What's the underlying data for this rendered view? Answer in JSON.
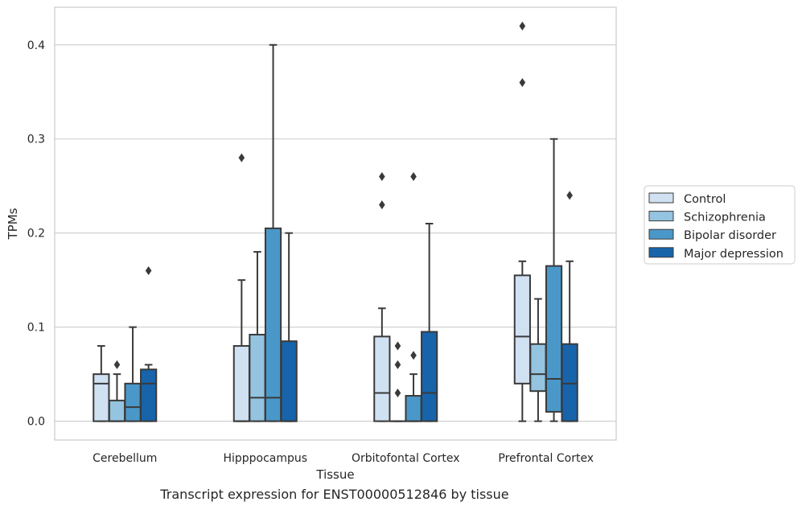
{
  "caption": "Transcript expression for ENST00000512846 by tissue",
  "chart_data": {
    "type": "box",
    "xlabel": "Tissue",
    "ylabel": "TPMs",
    "ylim": [
      -0.02,
      0.44
    ],
    "yticks": [
      0.0,
      0.1,
      0.2,
      0.3,
      0.4
    ],
    "ytick_labels": [
      "0.0",
      "0.1",
      "0.2",
      "0.3",
      "0.4"
    ],
    "grid": "horizontal",
    "legend_position": "right",
    "categories": [
      "Cerebellum",
      "Hipppocampus",
      "Orbitofontal Cortex",
      "Prefrontal Cortex"
    ],
    "series": [
      {
        "name": "Control",
        "color": "#d0e1f2",
        "boxes": [
          {
            "whisker_low": 0.0,
            "q1": 0.0,
            "median": 0.04,
            "q3": 0.05,
            "whisker_high": 0.08,
            "outliers": []
          },
          {
            "whisker_low": 0.0,
            "q1": 0.0,
            "median": 0.0,
            "q3": 0.08,
            "whisker_high": 0.15,
            "outliers": [
              0.28
            ]
          },
          {
            "whisker_low": 0.0,
            "q1": 0.0,
            "median": 0.03,
            "q3": 0.09,
            "whisker_high": 0.12,
            "outliers": [
              0.23,
              0.26
            ]
          },
          {
            "whisker_low": 0.0,
            "q1": 0.04,
            "median": 0.09,
            "q3": 0.155,
            "whisker_high": 0.17,
            "outliers": [
              0.36,
              0.42
            ]
          }
        ]
      },
      {
        "name": "Schizophrenia",
        "color": "#94c4df",
        "boxes": [
          {
            "whisker_low": 0.0,
            "q1": 0.0,
            "median": 0.0,
            "q3": 0.022,
            "whisker_high": 0.05,
            "outliers": [
              0.06
            ]
          },
          {
            "whisker_low": 0.0,
            "q1": 0.0,
            "median": 0.025,
            "q3": 0.092,
            "whisker_high": 0.18,
            "outliers": []
          },
          {
            "whisker_low": 0.0,
            "q1": 0.0,
            "median": 0.0,
            "q3": 0.0,
            "whisker_high": 0.0,
            "outliers": [
              0.03,
              0.06,
              0.08
            ]
          },
          {
            "whisker_low": 0.0,
            "q1": 0.032,
            "median": 0.05,
            "q3": 0.082,
            "whisker_high": 0.13,
            "outliers": []
          }
        ]
      },
      {
        "name": "Bipolar disorder",
        "color": "#4a98c9",
        "boxes": [
          {
            "whisker_low": 0.0,
            "q1": 0.0,
            "median": 0.015,
            "q3": 0.04,
            "whisker_high": 0.1,
            "outliers": []
          },
          {
            "whisker_low": 0.0,
            "q1": 0.0,
            "median": 0.025,
            "q3": 0.205,
            "whisker_high": 0.4,
            "outliers": []
          },
          {
            "whisker_low": 0.0,
            "q1": 0.0,
            "median": 0.0,
            "q3": 0.027,
            "whisker_high": 0.05,
            "outliers": [
              0.07,
              0.26
            ]
          },
          {
            "whisker_low": 0.0,
            "q1": 0.01,
            "median": 0.045,
            "q3": 0.165,
            "whisker_high": 0.3,
            "outliers": []
          }
        ]
      },
      {
        "name": "Major depression",
        "color": "#1764ab",
        "boxes": [
          {
            "whisker_low": 0.0,
            "q1": 0.0,
            "median": 0.04,
            "q3": 0.055,
            "whisker_high": 0.06,
            "outliers": [
              0.16
            ]
          },
          {
            "whisker_low": 0.0,
            "q1": 0.0,
            "median": 0.0,
            "q3": 0.085,
            "whisker_high": 0.2,
            "outliers": []
          },
          {
            "whisker_low": 0.0,
            "q1": 0.0,
            "median": 0.03,
            "q3": 0.095,
            "whisker_high": 0.21,
            "outliers": []
          },
          {
            "whisker_low": 0.0,
            "q1": 0.0,
            "median": 0.04,
            "q3": 0.082,
            "whisker_high": 0.17,
            "outliers": [
              0.24
            ]
          }
        ]
      }
    ]
  }
}
